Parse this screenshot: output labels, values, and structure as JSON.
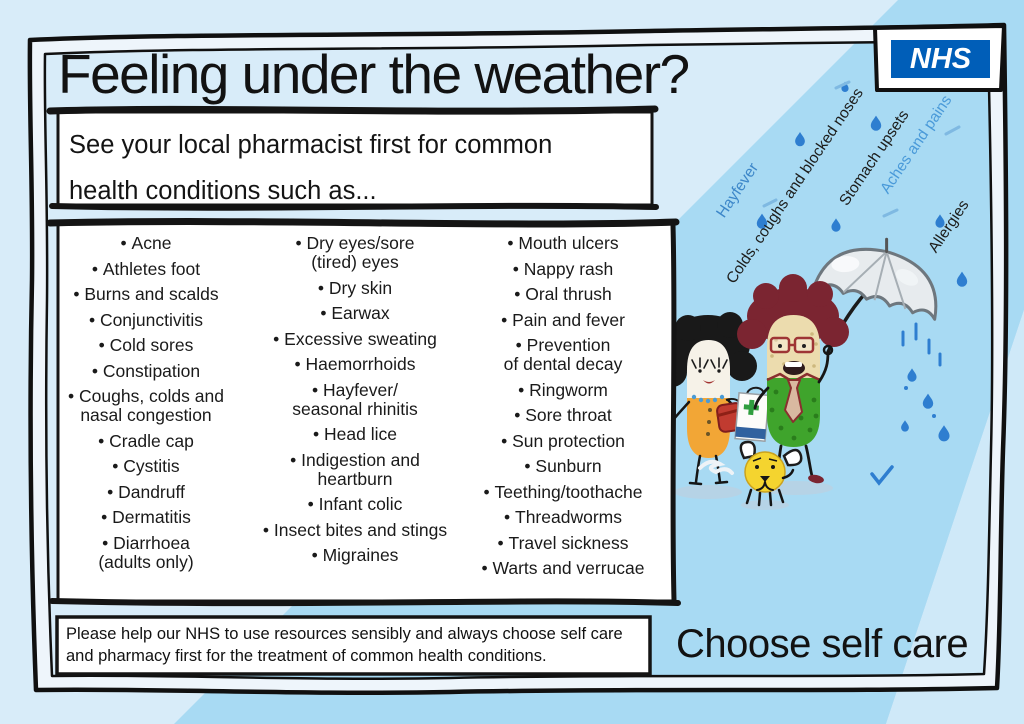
{
  "poster": {
    "title": "Feeling under the weather?",
    "subtitle": "See your local pharmacist first for common\nhealth conditions such as...",
    "footer_note": "Please help our NHS to use resources sensibly and always choose self care\nand pharmacy first for the treatment of common health conditions.",
    "tagline": "Choose self care",
    "nhs_logo": "NHS"
  },
  "conditions": {
    "column1": [
      "Acne",
      "Athletes foot",
      "Burns and scalds",
      "Conjunctivitis",
      "Cold sores",
      "Constipation",
      "Coughs, colds and\nnasal congestion",
      "Cradle cap",
      "Cystitis",
      "Dandruff",
      "Dermatitis",
      "Diarrhoea\n(adults only)"
    ],
    "column2": [
      "Dry eyes/sore\n(tired) eyes",
      "Dry skin",
      "Earwax",
      "Excessive sweating",
      "Haemorrhoids",
      "Hayfever/\nseasonal rhinitis",
      "Head lice",
      "Indigestion and\nheartburn",
      "Infant colic",
      "Insect bites and stings",
      "Migraines"
    ],
    "column3": [
      "Mouth ulcers",
      "Nappy rash",
      "Oral thrush",
      "Pain and fever",
      "Prevention\nof dental decay",
      "Ringworm",
      "Sore throat",
      "Sun protection",
      "Sunburn",
      "Teething/toothache",
      "Threadworms",
      "Travel sickness",
      "Warts and verrucae"
    ]
  },
  "rain_labels": [
    {
      "text": "Hayfever",
      "color": "#3d87c9"
    },
    {
      "text": "Colds, coughs and blocked noses",
      "color": "#1d1d1b"
    },
    {
      "text": "Stomach upsets",
      "color": "#1d1d1b"
    },
    {
      "text": "Aches and pains",
      "color": "#4a9ad9"
    },
    {
      "text": "Allergies",
      "color": "#1d1d1b"
    }
  ],
  "colors": {
    "nhs_blue": "#005EB8",
    "sky_dark": "#a8daf3",
    "sky_light": "#d8ecf9",
    "rain_blue": "#2e7ed0",
    "ink": "#121212"
  }
}
